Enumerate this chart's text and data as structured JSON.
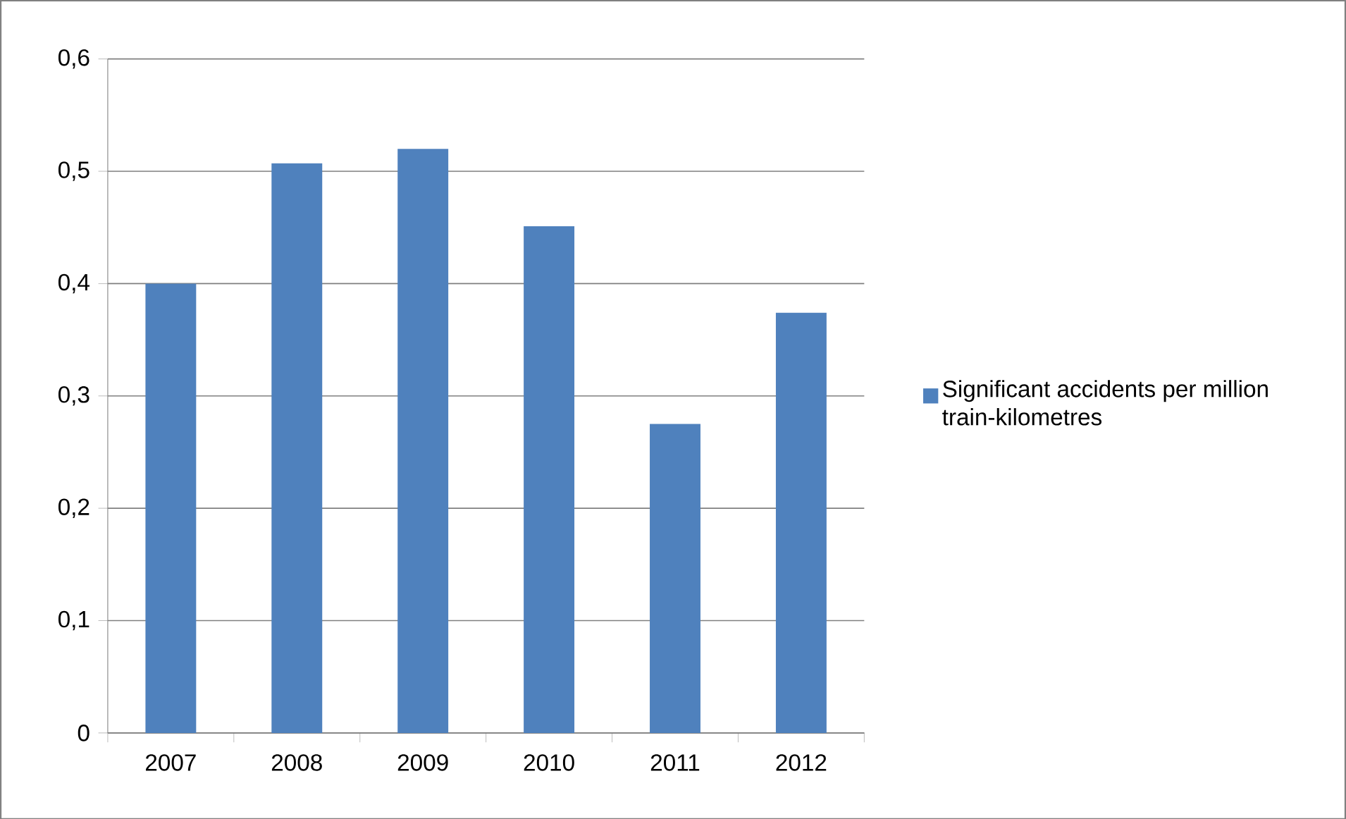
{
  "chart_data": {
    "type": "bar",
    "categories": [
      "2007",
      "2008",
      "2009",
      "2010",
      "2011",
      "2012"
    ],
    "series": [
      {
        "name": "Significant accidents per million train-kilometres",
        "color": "#4f81bd",
        "values": [
          0.4,
          0.507,
          0.52,
          0.451,
          0.275,
          0.374
        ]
      }
    ],
    "ylim": [
      0,
      0.6
    ],
    "yticks": [
      {
        "value": 0,
        "label": "0"
      },
      {
        "value": 0.1,
        "label": "0,1"
      },
      {
        "value": 0.2,
        "label": "0,2"
      },
      {
        "value": 0.3,
        "label": "0,3"
      },
      {
        "value": 0.4,
        "label": "0,4"
      },
      {
        "value": 0.5,
        "label": "0,5"
      },
      {
        "value": 0.6,
        "label": "0,6"
      }
    ],
    "grid": "y",
    "legend": "right"
  }
}
